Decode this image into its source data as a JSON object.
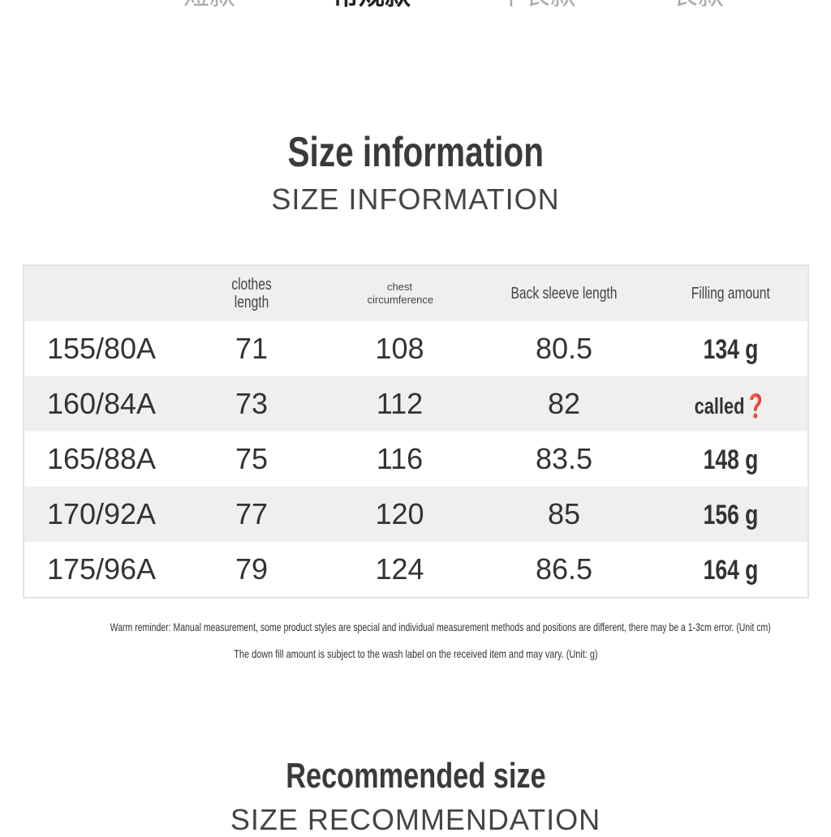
{
  "style_tabs": [
    {
      "label": "短款",
      "active": false
    },
    {
      "label": "常规款",
      "active": true
    },
    {
      "label": "中长款",
      "active": false
    },
    {
      "label": "长款",
      "active": false
    }
  ],
  "size_section": {
    "title": "Size information",
    "subtitle": "SIZE INFORMATION"
  },
  "table": {
    "headers": [
      "",
      "clothes length",
      "chest circumference",
      "Back sleeve length",
      "Filling amount"
    ],
    "rows": [
      [
        "155/80A",
        "71",
        "108",
        "80.5",
        "134 g"
      ],
      [
        "160/84A",
        "73",
        "112",
        "82",
        "called❓"
      ],
      [
        "165/88A",
        "75",
        "116",
        "83.5",
        "148 g"
      ],
      [
        "170/92A",
        "77",
        "120",
        "85",
        "156 g"
      ],
      [
        "175/96A",
        "79",
        "124",
        "86.5",
        "164 g"
      ]
    ]
  },
  "notes": [
    "Warm reminder: Manual measurement, some product styles are special and individual measurement methods and positions are different, there may be a 1-3cm error. (Unit cm)",
    "The down fill amount is subject to the wash label on the received item and may vary. (Unit: g)"
  ],
  "recommend_section": {
    "title": "Recommended size",
    "subtitle": "SIZE RECOMMENDATION"
  }
}
